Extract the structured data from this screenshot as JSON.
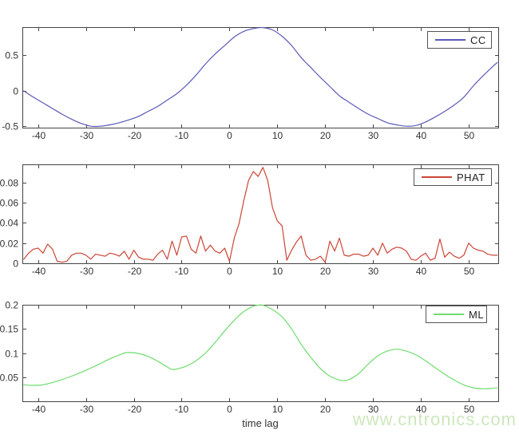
{
  "figure": {
    "background": "#ffffff",
    "axis_color": "#444444",
    "tick_label_color": "#333333",
    "tick_label_font_px": 12
  },
  "watermark": {
    "text": "www.cntronics.com",
    "color": "#cde7bd"
  },
  "chart_data": [
    {
      "type": "line",
      "title": "",
      "xlabel": "",
      "ylabel": "",
      "legend": {
        "label": "CC",
        "position": "top-right"
      },
      "line_color": "#5a5ab8",
      "smooth": true,
      "grid": false,
      "xlim": [
        -43.3,
        56.2
      ],
      "ylim": [
        -0.52,
        0.9
      ],
      "xticks": [
        -40,
        -30,
        -20,
        -10,
        0,
        10,
        20,
        30,
        40,
        50
      ],
      "xtick_labels": [
        "-40",
        "-30",
        "-20",
        "-10",
        "0",
        "10",
        "20",
        "30",
        "40",
        "50"
      ],
      "yticks": [
        -0.5,
        0,
        0.5
      ],
      "ytick_labels": [
        "-0.5",
        "0",
        "0.5"
      ],
      "x": [
        -43,
        -41,
        -39,
        -37,
        -35,
        -33,
        -31,
        -29,
        -27,
        -25,
        -23,
        -21,
        -19,
        -17,
        -15,
        -13,
        -11,
        -9,
        -7,
        -5,
        -3,
        -1,
        1,
        3,
        5,
        7,
        9,
        11,
        13,
        15,
        17,
        19,
        21,
        23,
        25,
        27,
        29,
        31,
        33,
        35,
        37,
        39,
        41,
        43,
        45,
        47,
        49,
        51,
        53,
        55,
        56
      ],
      "y": [
        0.0,
        -0.09,
        -0.17,
        -0.25,
        -0.33,
        -0.4,
        -0.46,
        -0.5,
        -0.5,
        -0.48,
        -0.45,
        -0.41,
        -0.36,
        -0.29,
        -0.22,
        -0.13,
        -0.04,
        0.08,
        0.22,
        0.38,
        0.52,
        0.64,
        0.76,
        0.84,
        0.88,
        0.9,
        0.86,
        0.77,
        0.64,
        0.47,
        0.33,
        0.19,
        0.06,
        -0.07,
        -0.16,
        -0.25,
        -0.33,
        -0.39,
        -0.45,
        -0.48,
        -0.5,
        -0.49,
        -0.44,
        -0.37,
        -0.29,
        -0.2,
        -0.09,
        0.07,
        0.21,
        0.34,
        0.4
      ]
    },
    {
      "type": "line",
      "title": "",
      "xlabel": "",
      "ylabel": "",
      "legend": {
        "label": "PHAT",
        "position": "top-right"
      },
      "line_color": "#cc4536",
      "smooth": false,
      "grid": false,
      "xlim": [
        -43.3,
        56.2
      ],
      "ylim": [
        0,
        0.098
      ],
      "xticks": [
        -40,
        -30,
        -20,
        -10,
        0,
        10,
        20,
        30,
        40,
        50
      ],
      "xtick_labels": [
        "-40",
        "-30",
        "-20",
        "-10",
        "0",
        "10",
        "20",
        "30",
        "40",
        "50"
      ],
      "yticks": [
        0,
        0.02,
        0.04,
        0.06,
        0.08
      ],
      "ytick_labels": [
        "0",
        "0.02",
        "0.04",
        "0.06",
        "0.08"
      ],
      "x": [
        -43,
        -42,
        -41,
        -40,
        -39,
        -38,
        -37,
        -36,
        -35,
        -34,
        -33,
        -32,
        -31,
        -30,
        -29,
        -28,
        -27,
        -26,
        -25,
        -24,
        -23,
        -22,
        -21,
        -20,
        -19,
        -18,
        -17,
        -16,
        -15,
        -14,
        -13,
        -12,
        -11,
        -10,
        -9,
        -8,
        -7,
        -6,
        -5,
        -4,
        -3,
        -2,
        -1,
        0,
        1,
        2,
        3,
        4,
        5,
        6,
        7,
        8,
        9,
        10,
        11,
        12,
        13,
        14,
        15,
        16,
        17,
        18,
        19,
        20,
        21,
        22,
        23,
        24,
        25,
        26,
        27,
        28,
        29,
        30,
        31,
        32,
        33,
        34,
        35,
        36,
        37,
        38,
        39,
        40,
        41,
        42,
        43,
        44,
        45,
        46,
        47,
        48,
        49,
        50,
        51,
        52,
        53,
        54,
        55,
        56
      ],
      "y": [
        0.004,
        0.01,
        0.014,
        0.015,
        0.01,
        0.019,
        0.014,
        0.002,
        0.001,
        0.002,
        0.008,
        0.01,
        0.01,
        0.008,
        0.004,
        0.009,
        0.008,
        0.007,
        0.01,
        0.009,
        0.007,
        0.012,
        0.004,
        0.013,
        0.006,
        0.004,
        0.004,
        0.003,
        0.009,
        0.013,
        0.004,
        0.022,
        0.008,
        0.026,
        0.027,
        0.014,
        0.01,
        0.027,
        0.012,
        0.018,
        0.012,
        0.01,
        0.015,
        0.002,
        0.025,
        0.039,
        0.062,
        0.082,
        0.091,
        0.086,
        0.095,
        0.082,
        0.055,
        0.042,
        0.037,
        0.003,
        0.013,
        0.021,
        0.027,
        0.008,
        0.003,
        0.004,
        0.007,
        0.001,
        0.022,
        0.012,
        0.025,
        0.008,
        0.007,
        0.009,
        0.009,
        0.007,
        0.008,
        0.015,
        0.008,
        0.02,
        0.01,
        0.014,
        0.016,
        0.015,
        0.012,
        0.004,
        0.003,
        0.007,
        0.01,
        0.003,
        0.005,
        0.024,
        0.006,
        0.011,
        0.007,
        0.005,
        0.008,
        0.02,
        0.015,
        0.013,
        0.012,
        0.009,
        0.008,
        0.008
      ]
    },
    {
      "type": "line",
      "title": "",
      "xlabel": "time lag",
      "ylabel": "",
      "legend": {
        "label": "ML",
        "position": "top-right"
      },
      "line_color": "#6fdc6f",
      "smooth": true,
      "grid": false,
      "xlim": [
        -43.3,
        56.2
      ],
      "ylim": [
        0,
        0.2
      ],
      "xticks": [
        -40,
        -30,
        -20,
        -10,
        0,
        10,
        20,
        30,
        40,
        50
      ],
      "xtick_labels": [
        "-40",
        "-30",
        "-20",
        "-10",
        "0",
        "10",
        "20",
        "30",
        "40",
        "50"
      ],
      "yticks": [
        0.05,
        0.1,
        0.15,
        0.2
      ],
      "ytick_labels": [
        "0.05",
        "0.1",
        "0.15",
        "0.2"
      ],
      "x": [
        -43,
        -41,
        -39,
        -37,
        -35,
        -33,
        -31,
        -29,
        -27,
        -25,
        -23,
        -22,
        -21,
        -19,
        -17,
        -15,
        -13,
        -12,
        -11,
        -9,
        -7,
        -5,
        -3,
        -1,
        1,
        3,
        5,
        6,
        7,
        9,
        11,
        13,
        15,
        17,
        19,
        21,
        23,
        24,
        25,
        27,
        29,
        31,
        33,
        35,
        37,
        39,
        41,
        43,
        45,
        47,
        49,
        51,
        53,
        55,
        56
      ],
      "y": [
        0.034,
        0.033,
        0.034,
        0.039,
        0.045,
        0.052,
        0.06,
        0.069,
        0.078,
        0.088,
        0.096,
        0.1,
        0.101,
        0.099,
        0.093,
        0.083,
        0.071,
        0.066,
        0.067,
        0.073,
        0.084,
        0.1,
        0.122,
        0.146,
        0.168,
        0.186,
        0.197,
        0.2,
        0.199,
        0.19,
        0.175,
        0.15,
        0.118,
        0.091,
        0.068,
        0.052,
        0.044,
        0.043,
        0.045,
        0.057,
        0.077,
        0.094,
        0.104,
        0.108,
        0.104,
        0.096,
        0.084,
        0.07,
        0.056,
        0.044,
        0.034,
        0.028,
        0.026,
        0.027,
        0.028
      ]
    }
  ]
}
